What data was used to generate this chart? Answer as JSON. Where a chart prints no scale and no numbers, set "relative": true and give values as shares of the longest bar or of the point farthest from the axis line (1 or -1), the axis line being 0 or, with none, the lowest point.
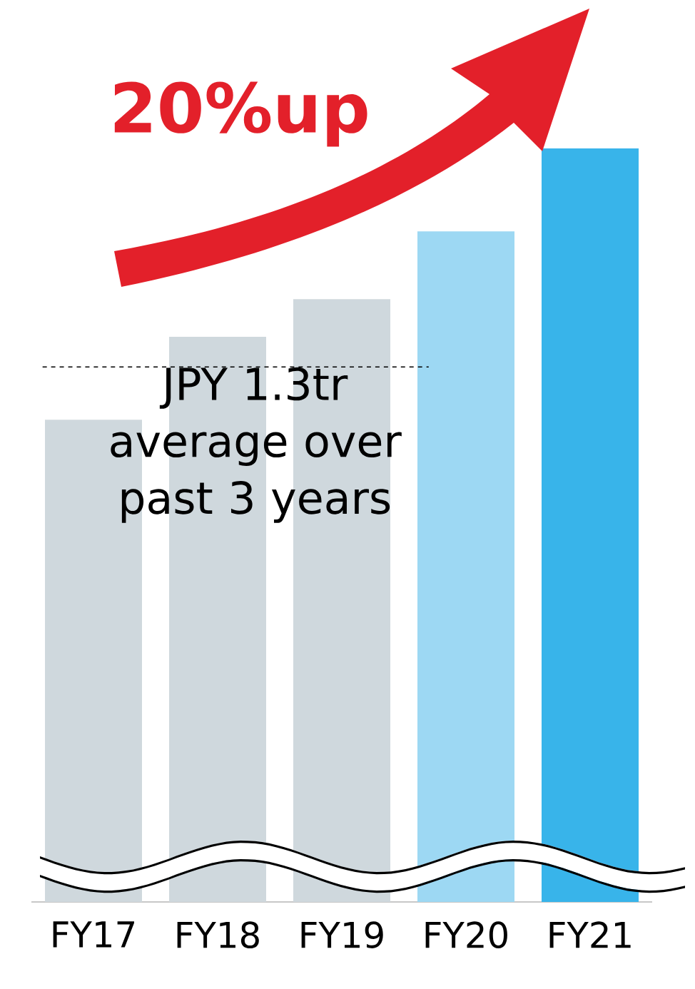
{
  "chart_data": {
    "type": "bar",
    "relative": true,
    "categories": [
      "FY17",
      "FY18",
      "FY19",
      "FY20",
      "FY21"
    ],
    "values": [
      0.64,
      0.75,
      0.8,
      0.89,
      1
    ],
    "colors": [
      "#cfd8dd",
      "#cfd8dd",
      "#cfd8dd",
      "#9dd8f3",
      "#38b4ea"
    ],
    "ref_lines": [
      {
        "axis": "y",
        "value": 0.71,
        "label": "JPY 1.3tr average over past 3 years",
        "color": "#000000",
        "line_style": "dashed"
      }
    ],
    "annotations": [
      "20%up"
    ]
  }
}
